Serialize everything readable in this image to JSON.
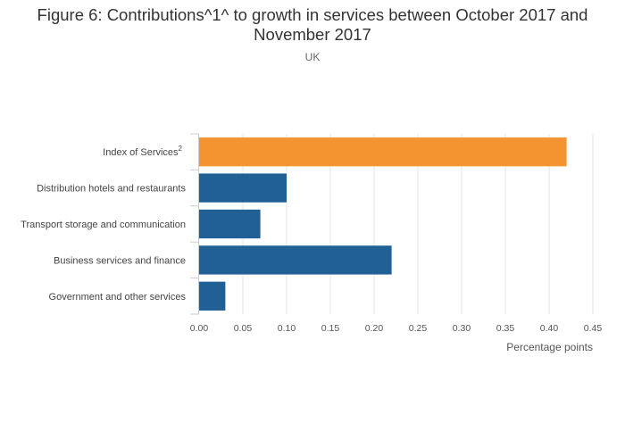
{
  "title": "Figure 6: Contributions^1^ to growth in services between October 2017 and November 2017",
  "subtitle": "UK",
  "chart_data": {
    "type": "bar",
    "orientation": "horizontal",
    "title": "Figure 6: Contributions^1^ to growth in services between October 2017 and November 2017",
    "subtitle": "UK",
    "xlabel": "Percentage points",
    "ylabel": "",
    "categories": [
      "Index of Services",
      "Distribution hotels and restaurants",
      "Transport storage and communication",
      "Business services and finance",
      "Government and other services"
    ],
    "category_superscripts": [
      "2",
      "",
      "",
      "",
      ""
    ],
    "values": [
      0.42,
      0.1,
      0.07,
      0.22,
      0.03
    ],
    "bar_colors": [
      "#f39431",
      "#206095",
      "#206095",
      "#206095",
      "#206095"
    ],
    "xlim": [
      0,
      0.45
    ],
    "xticks": [
      "0.00",
      "0.05",
      "0.10",
      "0.15",
      "0.20",
      "0.25",
      "0.30",
      "0.35",
      "0.40",
      "0.45"
    ],
    "grid": true,
    "gridline_color": "#e6e6e6"
  }
}
